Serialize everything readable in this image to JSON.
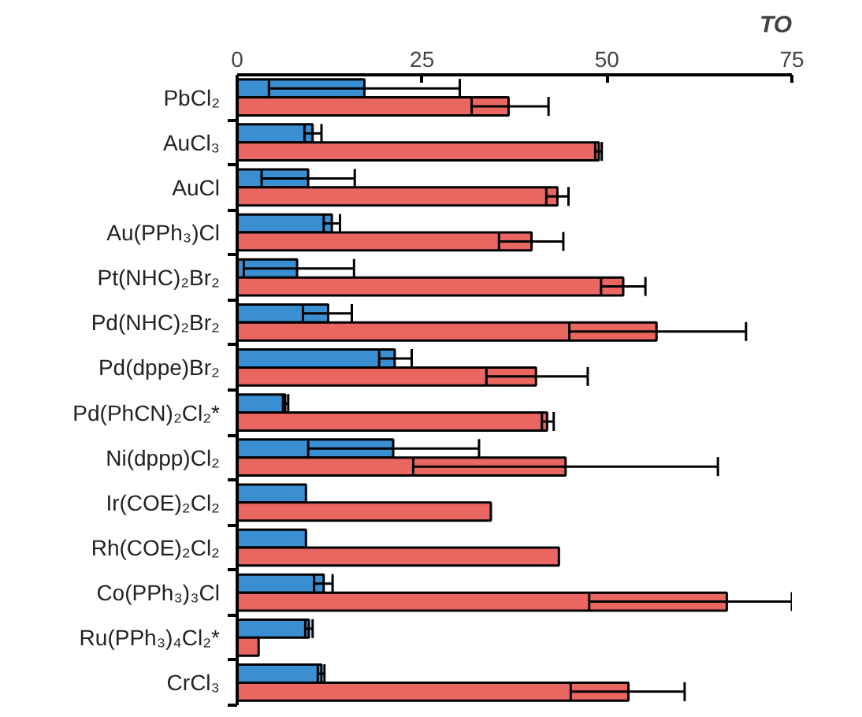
{
  "chart_data": {
    "type": "bar",
    "orientation": "horizontal",
    "xlabel": "TO",
    "categories": [
      "PbCl₂",
      "AuCl₃",
      "AuCl",
      "Au(PPh₃)Cl",
      "Pt(NHC)₂Br₂",
      "Pd(NHC)₂Br₂",
      "Pd(dppe)Br₂",
      "Pd(PhCN)₂Cl₂*",
      "Ni(dppp)Cl₂",
      "Ir(COE)₂Cl₂",
      "Rh(COE)₂Cl₂",
      "Co(PPh₃)₃Cl",
      "Ru(PPh₃)₄Cl₂*",
      "CrCl₃"
    ],
    "series": [
      {
        "color": "#3a8fd3",
        "values": [
          17.2,
          10.2,
          9.6,
          12.8,
          8.1,
          12.3,
          21.3,
          6.5,
          21.1,
          9.3,
          9.3,
          11.7,
          9.7,
          11.4
        ],
        "errors": [
          [
            4.3,
            30.1
          ],
          [
            9.1,
            11.4
          ],
          [
            3.3,
            15.9
          ],
          [
            11.7,
            13.9
          ],
          [
            0.9,
            15.8
          ],
          [
            8.9,
            15.5
          ],
          [
            19.2,
            23.6
          ],
          [
            6.2,
            6.9
          ],
          [
            9.6,
            32.7
          ],
          null,
          null,
          [
            10.4,
            12.9
          ],
          [
            9.2,
            10.2
          ],
          [
            10.9,
            11.8
          ]
        ]
      },
      {
        "color": "#ea6660",
        "values": [
          36.7,
          48.9,
          43.3,
          39.8,
          52.2,
          56.7,
          40.4,
          41.9,
          44.4,
          34.3,
          43.5,
          66.2,
          2.9,
          52.9
        ],
        "errors": [
          [
            31.7,
            42.1
          ],
          [
            48.4,
            49.3
          ],
          [
            41.8,
            44.8
          ],
          [
            35.4,
            44.1
          ],
          [
            49.2,
            55.2
          ],
          [
            44.9,
            68.8
          ],
          [
            33.7,
            47.4
          ],
          [
            41.2,
            42.8
          ],
          [
            23.8,
            65.0
          ],
          null,
          null,
          [
            47.6,
            75.0
          ],
          null,
          [
            45.1,
            60.5
          ]
        ]
      }
    ],
    "xlim": [
      0,
      75
    ],
    "xticks": [
      0,
      25,
      50,
      75
    ]
  }
}
